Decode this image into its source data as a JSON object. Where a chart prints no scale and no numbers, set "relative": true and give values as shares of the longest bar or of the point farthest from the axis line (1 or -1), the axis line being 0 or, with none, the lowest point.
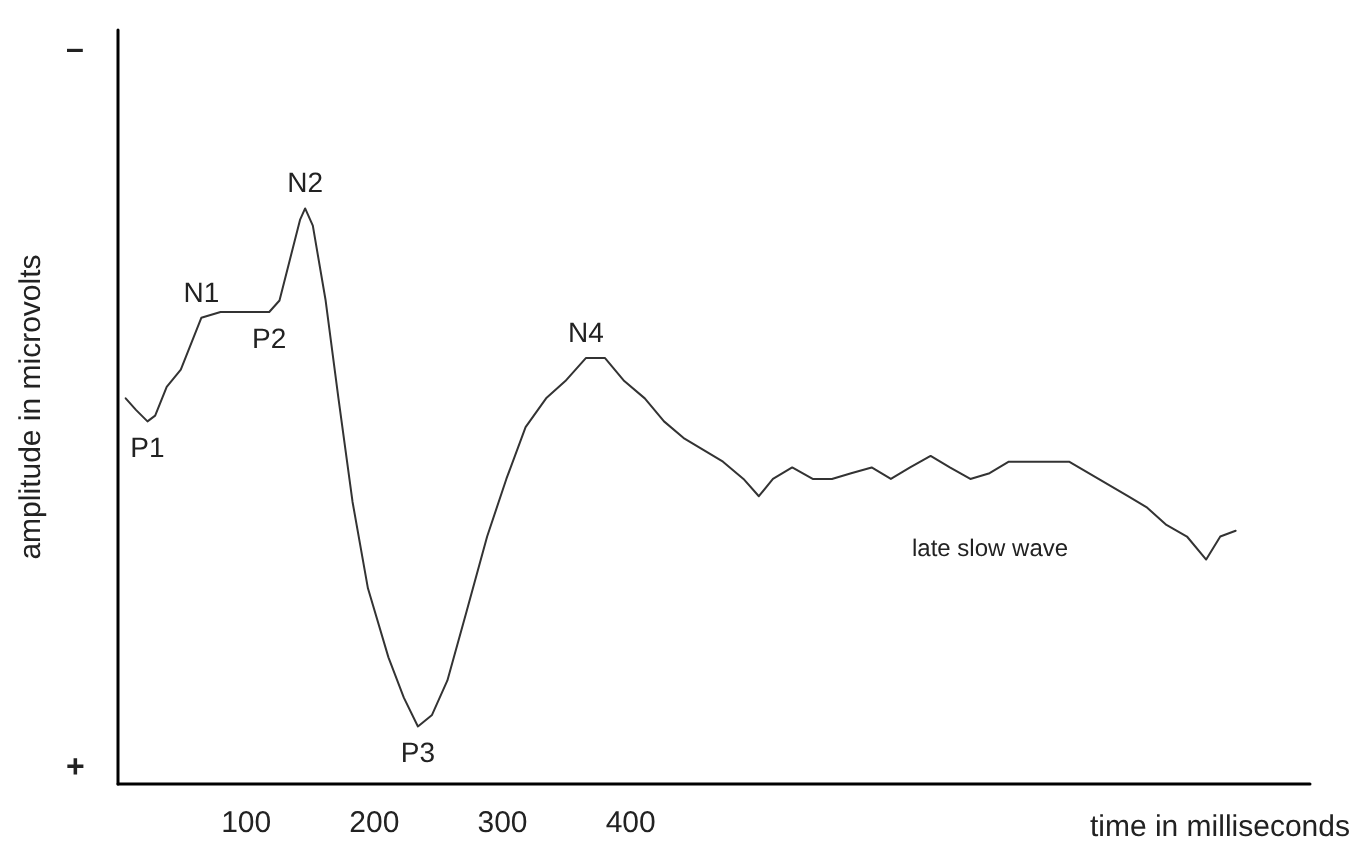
{
  "chart_data": {
    "type": "line",
    "relative": true,
    "xlabel": "time in milliseconds",
    "ylabel": "amplitude in microvolts",
    "x": [
      6,
      14,
      23,
      29,
      38,
      49,
      65,
      80,
      95,
      111,
      118,
      126,
      134,
      142,
      146,
      152,
      162,
      172,
      183,
      195,
      211,
      223,
      234,
      245,
      257,
      272,
      288,
      303,
      318,
      334,
      349,
      365,
      380,
      395,
      411,
      426,
      442,
      457,
      472,
      488,
      500,
      511,
      526,
      542,
      557,
      572,
      588,
      603,
      618,
      634,
      649,
      665,
      680,
      695,
      718,
      742,
      765,
      788,
      803,
      818,
      834,
      849,
      860,
      872
    ],
    "series": [
      {
        "color": "#333333",
        "values": [
          0.67,
          0.65,
          0.63,
          0.64,
          0.69,
          0.72,
          0.81,
          0.82,
          0.82,
          0.82,
          0.82,
          0.84,
          0.91,
          0.98,
          1.0,
          0.97,
          0.84,
          0.67,
          0.49,
          0.34,
          0.22,
          0.15,
          0.1,
          0.12,
          0.18,
          0.3,
          0.43,
          0.53,
          0.62,
          0.67,
          0.7,
          0.74,
          0.74,
          0.7,
          0.67,
          0.63,
          0.6,
          0.58,
          0.56,
          0.53,
          0.5,
          0.53,
          0.55,
          0.53,
          0.53,
          0.54,
          0.55,
          0.53,
          0.55,
          0.57,
          0.55,
          0.53,
          0.54,
          0.56,
          0.56,
          0.56,
          0.53,
          0.5,
          0.48,
          0.45,
          0.43,
          0.39,
          0.43,
          0.44
        ]
      }
    ],
    "xlim": [
      0,
      930
    ],
    "xticks": [
      100,
      200,
      300,
      400
    ],
    "annotations": [
      "–",
      "+",
      {
        "text": "P1",
        "x": 23,
        "y": 0.63
      },
      {
        "text": "N1",
        "x": 65,
        "y": 0.81
      },
      {
        "text": "P2",
        "x": 118,
        "y": 0.82
      },
      {
        "text": "N2",
        "x": 146,
        "y": 1.0
      },
      {
        "text": "P3",
        "x": 234,
        "y": 0.1
      },
      {
        "text": "N4",
        "x": 365,
        "y": 0.74
      },
      "late slow wave"
    ],
    "grid": false,
    "marker": "none",
    "line_style": "solid"
  }
}
